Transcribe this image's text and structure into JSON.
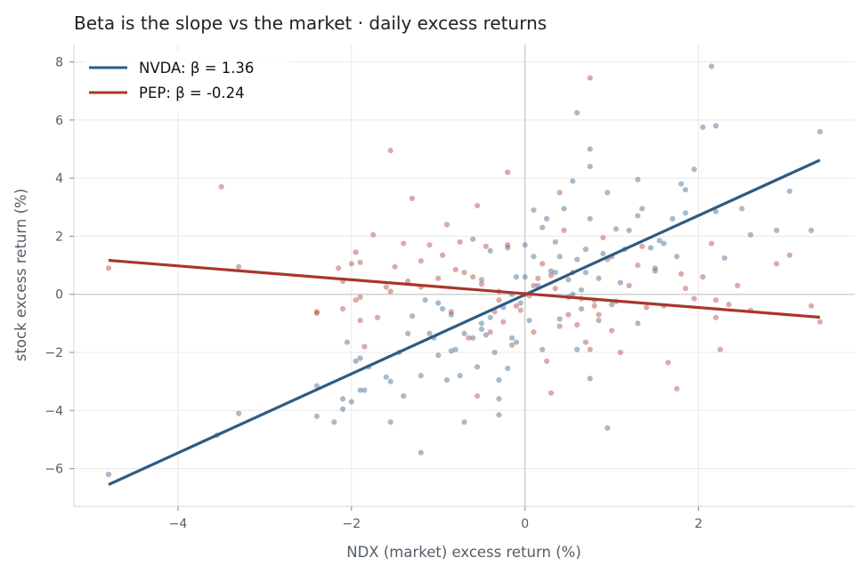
{
  "chart_data": {
    "type": "scatter",
    "title": "Beta is the slope vs the market  ·  daily excess returns",
    "xlabel": "NDX (market) excess return (%)",
    "ylabel": "stock excess return (%)",
    "xlim": [
      -5.2,
      3.8
    ],
    "ylim": [
      -7.3,
      8.6
    ],
    "xticks": [
      -4,
      -2,
      0,
      2
    ],
    "yticks": [
      -6,
      -4,
      -2,
      0,
      2,
      4,
      6,
      8
    ],
    "tick_labels": {
      "x": [
        "−4",
        "−2",
        "0",
        "2"
      ],
      "y": [
        "−6",
        "−4",
        "−2",
        "0",
        "2",
        "4",
        "6",
        "8"
      ]
    },
    "grid": true,
    "legend_position": "top-left",
    "series": [
      {
        "name": "NVDA: β = 1.36",
        "color": "#2e5b82",
        "beta": 1.36,
        "fit_line": [
          [
            -4.8,
            -6.55
          ],
          [
            3.4,
            4.62
          ]
        ],
        "points": [
          [
            -4.8,
            -6.2
          ],
          [
            -3.55,
            -4.85
          ],
          [
            -3.3,
            -4.1
          ],
          [
            -2.4,
            -3.15
          ],
          [
            -2.4,
            -4.2
          ],
          [
            -2.2,
            -4.4
          ],
          [
            -2.1,
            -3.6
          ],
          [
            -2.1,
            -3.95
          ],
          [
            -2.05,
            -1.65
          ],
          [
            -2.0,
            -3.7
          ],
          [
            -1.95,
            -2.3
          ],
          [
            -1.9,
            -3.3
          ],
          [
            -1.85,
            -3.3
          ],
          [
            -1.9,
            -2.2
          ],
          [
            -1.8,
            -2.5
          ],
          [
            -1.6,
            -2.85
          ],
          [
            -1.55,
            -3.0
          ],
          [
            -1.55,
            -4.4
          ],
          [
            -1.45,
            -2.0
          ],
          [
            -1.4,
            -3.5
          ],
          [
            -1.35,
            -1.35
          ],
          [
            -1.3,
            -0.75
          ],
          [
            -1.2,
            -2.8
          ],
          [
            -1.2,
            -5.45
          ],
          [
            -1.15,
            -0.2
          ],
          [
            -1.1,
            -1.35
          ],
          [
            -1.05,
            -1.5
          ],
          [
            -1.0,
            -2.1
          ],
          [
            -0.95,
            -0.5
          ],
          [
            -0.9,
            -2.95
          ],
          [
            -0.85,
            -1.95
          ],
          [
            -0.85,
            -0.7
          ],
          [
            -0.8,
            -1.9
          ],
          [
            -0.75,
            -2.8
          ],
          [
            -0.7,
            -1.35
          ],
          [
            -0.7,
            -4.4
          ],
          [
            -0.6,
            -1.5
          ],
          [
            -0.55,
            -2.5
          ],
          [
            -0.5,
            -1.2
          ],
          [
            -0.5,
            -1.0
          ],
          [
            -0.45,
            -1.4
          ],
          [
            -0.4,
            -0.8
          ],
          [
            -0.35,
            -2.0
          ],
          [
            -0.3,
            -2.95
          ],
          [
            -0.3,
            -3.6
          ],
          [
            -0.3,
            -4.15
          ],
          [
            -0.25,
            -0.45
          ],
          [
            -0.2,
            -2.55
          ],
          [
            -0.15,
            -1.5
          ],
          [
            -0.1,
            -1.65
          ],
          [
            -0.1,
            0.6
          ],
          [
            -0.05,
            -0.3
          ],
          [
            0.0,
            0.6
          ],
          [
            0.0,
            1.7
          ],
          [
            0.05,
            -0.9
          ],
          [
            0.1,
            1.3
          ],
          [
            0.15,
            0.3
          ],
          [
            0.2,
            -1.9
          ],
          [
            0.25,
            2.6
          ],
          [
            0.3,
            0.8
          ],
          [
            0.35,
            0.75
          ],
          [
            0.4,
            1.3
          ],
          [
            0.45,
            2.95
          ],
          [
            0.5,
            -0.1
          ],
          [
            0.5,
            0.5
          ],
          [
            0.55,
            0.0
          ],
          [
            0.6,
            1.2
          ],
          [
            0.6,
            -1.9
          ],
          [
            0.65,
            0.15
          ],
          [
            0.7,
            0.75
          ],
          [
            0.7,
            1.55
          ],
          [
            0.75,
            2.6
          ],
          [
            0.75,
            4.4
          ],
          [
            0.75,
            5.0
          ],
          [
            0.75,
            -2.9
          ],
          [
            0.8,
            -0.2
          ],
          [
            0.85,
            0.55
          ],
          [
            0.9,
            1.4
          ],
          [
            0.95,
            3.5
          ],
          [
            0.95,
            -4.6
          ],
          [
            1.0,
            1.3
          ],
          [
            1.0,
            -0.35
          ],
          [
            1.05,
            2.25
          ],
          [
            1.1,
            0.4
          ],
          [
            1.15,
            1.55
          ],
          [
            1.2,
            2.2
          ],
          [
            1.3,
            2.7
          ],
          [
            1.3,
            3.95
          ],
          [
            1.35,
            2.95
          ],
          [
            1.3,
            -1.0
          ],
          [
            1.45,
            1.6
          ],
          [
            1.5,
            0.9
          ],
          [
            1.55,
            1.85
          ],
          [
            1.6,
            1.75
          ],
          [
            1.7,
            2.6
          ],
          [
            1.75,
            1.3
          ],
          [
            1.8,
            3.8
          ],
          [
            1.85,
            3.6
          ],
          [
            1.85,
            2.8
          ],
          [
            1.95,
            4.3
          ],
          [
            2.05,
            5.75
          ],
          [
            2.15,
            7.85
          ],
          [
            2.2,
            5.8
          ],
          [
            2.2,
            2.85
          ],
          [
            2.3,
            1.25
          ],
          [
            2.5,
            2.95
          ],
          [
            2.6,
            2.05
          ],
          [
            2.9,
            2.2
          ],
          [
            3.05,
            3.55
          ],
          [
            3.3,
            2.2
          ],
          [
            3.4,
            5.6
          ],
          [
            0.55,
            3.9
          ],
          [
            0.6,
            6.25
          ],
          [
            -0.2,
            1.6
          ],
          [
            -0.4,
            1.5
          ],
          [
            0.1,
            2.9
          ],
          [
            0.2,
            2.3
          ],
          [
            0.35,
            1.8
          ],
          [
            0.4,
            -0.85
          ],
          [
            0.65,
            -0.5
          ],
          [
            0.85,
            -0.9
          ],
          [
            -0.5,
            0.5
          ],
          [
            -0.6,
            1.9
          ],
          [
            -1.0,
            -0.3
          ],
          [
            -0.15,
            0.0
          ]
        ]
      },
      {
        "name": "PEP: β = -0.24",
        "color": "#a9362a",
        "beta": -0.24,
        "fit_line": [
          [
            -4.8,
            1.17
          ],
          [
            3.4,
            -0.79
          ]
        ],
        "points": [
          [
            -4.8,
            0.9
          ],
          [
            -3.5,
            3.7
          ],
          [
            -3.3,
            0.95
          ],
          [
            -2.4,
            -0.6
          ],
          [
            -2.4,
            -0.65
          ],
          [
            -2.15,
            0.9
          ],
          [
            -2.1,
            -0.5
          ],
          [
            -2.1,
            0.45
          ],
          [
            -2.0,
            1.05
          ],
          [
            -1.95,
            1.45
          ],
          [
            -1.95,
            -0.2
          ],
          [
            -1.9,
            1.1
          ],
          [
            -1.9,
            -0.1
          ],
          [
            -1.9,
            -0.9
          ],
          [
            -1.85,
            -1.8
          ],
          [
            -1.75,
            2.05
          ],
          [
            -1.7,
            -0.8
          ],
          [
            -1.6,
            0.25
          ],
          [
            -1.55,
            4.95
          ],
          [
            -1.55,
            0.1
          ],
          [
            -1.5,
            0.95
          ],
          [
            -1.4,
            1.75
          ],
          [
            -1.35,
            0.45
          ],
          [
            -1.3,
            3.3
          ],
          [
            -1.2,
            0.25
          ],
          [
            -1.2,
            1.15
          ],
          [
            -1.1,
            1.7
          ],
          [
            -1.0,
            0.55
          ],
          [
            -0.95,
            1.35
          ],
          [
            -0.9,
            2.4
          ],
          [
            -0.85,
            -0.6
          ],
          [
            -0.8,
            0.85
          ],
          [
            -0.75,
            1.8
          ],
          [
            -0.7,
            0.75
          ],
          [
            -0.6,
            0.6
          ],
          [
            -0.55,
            3.05
          ],
          [
            -0.55,
            -3.5
          ],
          [
            -0.5,
            0.35
          ],
          [
            -0.45,
            1.65
          ],
          [
            -0.4,
            -1.3
          ],
          [
            -0.35,
            -0.6
          ],
          [
            -0.3,
            0.1
          ],
          [
            -0.25,
            -0.95
          ],
          [
            -0.2,
            1.7
          ],
          [
            -0.2,
            4.2
          ],
          [
            -0.1,
            -0.4
          ],
          [
            -0.05,
            -0.55
          ],
          [
            0.0,
            0.0
          ],
          [
            0.05,
            -0.05
          ],
          [
            0.1,
            -1.3
          ],
          [
            0.15,
            0.55
          ],
          [
            0.2,
            1.05
          ],
          [
            0.25,
            -2.3
          ],
          [
            0.3,
            -3.4
          ],
          [
            0.35,
            0.2
          ],
          [
            0.4,
            -1.1
          ],
          [
            0.4,
            3.5
          ],
          [
            0.45,
            2.2
          ],
          [
            0.5,
            -0.7
          ],
          [
            0.55,
            0.75
          ],
          [
            0.6,
            -1.05
          ],
          [
            0.65,
            -0.15
          ],
          [
            0.7,
            -1.65
          ],
          [
            0.75,
            -1.9
          ],
          [
            0.75,
            7.45
          ],
          [
            0.8,
            -0.4
          ],
          [
            0.85,
            -0.7
          ],
          [
            0.9,
            1.95
          ],
          [
            0.95,
            1.2
          ],
          [
            1.0,
            -1.25
          ],
          [
            1.05,
            -0.25
          ],
          [
            1.1,
            -2.0
          ],
          [
            1.2,
            0.3
          ],
          [
            1.3,
            1.0
          ],
          [
            1.35,
            1.65
          ],
          [
            1.4,
            -0.45
          ],
          [
            1.5,
            0.8
          ],
          [
            1.6,
            -0.4
          ],
          [
            1.65,
            -2.35
          ],
          [
            1.75,
            -3.25
          ],
          [
            1.8,
            0.7
          ],
          [
            1.85,
            0.2
          ],
          [
            1.95,
            -0.15
          ],
          [
            2.05,
            0.6
          ],
          [
            2.15,
            1.75
          ],
          [
            2.2,
            -0.8
          ],
          [
            2.2,
            -0.2
          ],
          [
            2.25,
            -1.9
          ],
          [
            2.35,
            -0.35
          ],
          [
            2.45,
            0.3
          ],
          [
            2.6,
            -0.55
          ],
          [
            2.9,
            1.05
          ],
          [
            3.05,
            1.35
          ],
          [
            3.3,
            -0.4
          ],
          [
            3.4,
            -0.95
          ],
          [
            -0.65,
            -1.5
          ],
          [
            -0.15,
            -1.75
          ],
          [
            0.1,
            0.3
          ],
          [
            -0.3,
            -0.2
          ],
          [
            0.3,
            0.65
          ]
        ]
      }
    ]
  }
}
